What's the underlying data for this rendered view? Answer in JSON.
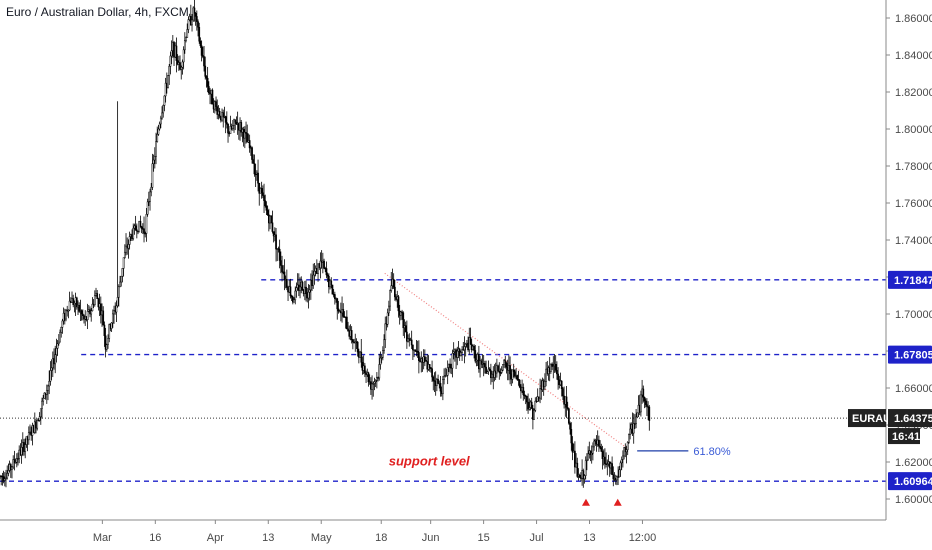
{
  "chart_data": {
    "type": "candlestick",
    "title": "Euro / Australian Dollar, 4h, FXCM",
    "symbol": "EURAUD",
    "last_price": 1.64375,
    "countdown": "16:41",
    "y_axis": {
      "ylim": [
        1.585,
        1.871
      ],
      "ticks": [
        "1.86000",
        "1.84000",
        "1.82000",
        "1.80000",
        "1.78000",
        "1.76000",
        "1.74000",
        "1.72000",
        "1.70000",
        "1.68000",
        "1.66000",
        "1.64000",
        "1.62000",
        "1.60000"
      ],
      "tick_values": [
        1.86,
        1.84,
        1.82,
        1.8,
        1.78,
        1.76,
        1.74,
        1.72,
        1.7,
        1.68,
        1.66,
        1.64,
        1.62,
        1.6
      ]
    },
    "x_axis": {
      "labels": [
        "Mar",
        "16",
        "Apr",
        "13",
        "May",
        "18",
        "Jun",
        "15",
        "Jul",
        "13",
        "12:00"
      ],
      "label_days": [
        29,
        44,
        61,
        76,
        91,
        108,
        122,
        137,
        152,
        167,
        182
      ]
    },
    "price_path": [
      [
        0,
        1.612
      ],
      [
        2,
        1.614
      ],
      [
        4,
        1.62
      ],
      [
        6,
        1.626
      ],
      [
        8,
        1.633
      ],
      [
        10,
        1.64
      ],
      [
        12,
        1.652
      ],
      [
        14,
        1.664
      ],
      [
        16,
        1.682
      ],
      [
        18,
        1.698
      ],
      [
        20,
        1.708
      ],
      [
        22,
        1.704
      ],
      [
        24,
        1.696
      ],
      [
        26,
        1.703
      ],
      [
        27,
        1.711
      ],
      [
        28,
        1.706
      ],
      [
        29,
        1.699
      ],
      [
        30,
        1.682
      ],
      [
        31,
        1.692
      ],
      [
        33,
        1.705
      ],
      [
        35,
        1.73
      ],
      [
        37,
        1.742
      ],
      [
        39,
        1.748
      ],
      [
        41,
        1.745
      ],
      [
        43,
        1.775
      ],
      [
        45,
        1.802
      ],
      [
        47,
        1.822
      ],
      [
        49,
        1.845
      ],
      [
        51,
        1.832
      ],
      [
        53,
        1.855
      ],
      [
        55,
        1.864
      ],
      [
        57,
        1.842
      ],
      [
        59,
        1.822
      ],
      [
        61,
        1.812
      ],
      [
        63,
        1.806
      ],
      [
        65,
        1.798
      ],
      [
        67,
        1.804
      ],
      [
        69,
        1.798
      ],
      [
        71,
        1.788
      ],
      [
        73,
        1.772
      ],
      [
        75,
        1.758
      ],
      [
        77,
        1.748
      ],
      [
        79,
        1.732
      ],
      [
        81,
        1.718
      ],
      [
        83,
        1.708
      ],
      [
        85,
        1.716
      ],
      [
        87,
        1.712
      ],
      [
        89,
        1.722
      ],
      [
        91,
        1.728
      ],
      [
        93,
        1.718
      ],
      [
        95,
        1.708
      ],
      [
        97,
        1.7
      ],
      [
        99,
        1.69
      ],
      [
        101,
        1.682
      ],
      [
        103,
        1.672
      ],
      [
        105,
        1.662
      ],
      [
        107,
        1.666
      ],
      [
        109,
        1.689
      ],
      [
        111,
        1.718
      ],
      [
        113,
        1.704
      ],
      [
        115,
        1.69
      ],
      [
        117,
        1.684
      ],
      [
        119,
        1.676
      ],
      [
        121,
        1.672
      ],
      [
        123,
        1.665
      ],
      [
        125,
        1.66
      ],
      [
        127,
        1.672
      ],
      [
        129,
        1.678
      ],
      [
        131,
        1.68
      ],
      [
        133,
        1.684
      ],
      [
        135,
        1.676
      ],
      [
        137,
        1.67
      ],
      [
        139,
        1.668
      ],
      [
        141,
        1.67
      ],
      [
        143,
        1.672
      ],
      [
        145,
        1.668
      ],
      [
        147,
        1.664
      ],
      [
        149,
        1.654
      ],
      [
        151,
        1.647
      ],
      [
        153,
        1.658
      ],
      [
        155,
        1.67
      ],
      [
        157,
        1.672
      ],
      [
        159,
        1.66
      ],
      [
        161,
        1.645
      ],
      [
        162,
        1.63
      ],
      [
        163,
        1.618
      ],
      [
        164,
        1.61
      ],
      [
        165,
        1.612
      ],
      [
        166,
        1.618
      ],
      [
        167,
        1.626
      ],
      [
        169,
        1.63
      ],
      [
        171,
        1.621
      ],
      [
        173,
        1.616
      ],
      [
        174,
        1.61
      ],
      [
        175,
        1.612
      ],
      [
        177,
        1.626
      ],
      [
        179,
        1.638
      ],
      [
        181,
        1.648
      ],
      [
        182,
        1.659
      ],
      [
        183,
        1.652
      ],
      [
        184,
        1.645
      ]
    ],
    "levels": [
      {
        "value": 1.71847,
        "label": "1.71847",
        "color": "#1e22c9",
        "style": "dashed",
        "x_start": 74
      },
      {
        "value": 1.67805,
        "label": "1.67805",
        "color": "#1e22c9",
        "style": "dashed",
        "x_start": 23
      },
      {
        "value": 1.60964,
        "label": "1.60964",
        "color": "#1e22c9",
        "style": "dashed",
        "x_start": 0
      }
    ],
    "current_price_line": {
      "value": 1.64375,
      "color": "#333333",
      "style": "dotted"
    },
    "trendline": {
      "from": [
        109,
        1.722
      ],
      "to": [
        178,
        1.627
      ],
      "color": "#f08080",
      "style": "dotted"
    },
    "fib_line": {
      "from": [
        180.5,
        1.626
      ],
      "to": [
        195,
        1.626
      ],
      "label": "61.80%",
      "color": "#1e3fa8"
    },
    "annotations": [
      {
        "text": "support level",
        "at": [
          109,
          1.618
        ],
        "color": "#e02020"
      }
    ],
    "markers": [
      {
        "type": "triangle-up",
        "at": [
          166,
          1.598
        ],
        "color": "#e02020"
      },
      {
        "type": "triangle-up",
        "at": [
          175,
          1.598
        ],
        "color": "#e02020"
      }
    ],
    "colors": {
      "candle": "#000000",
      "axis": "#4a4a4a",
      "tag_bg": "#1e22c9",
      "price_tag_bg": "#222222"
    }
  }
}
